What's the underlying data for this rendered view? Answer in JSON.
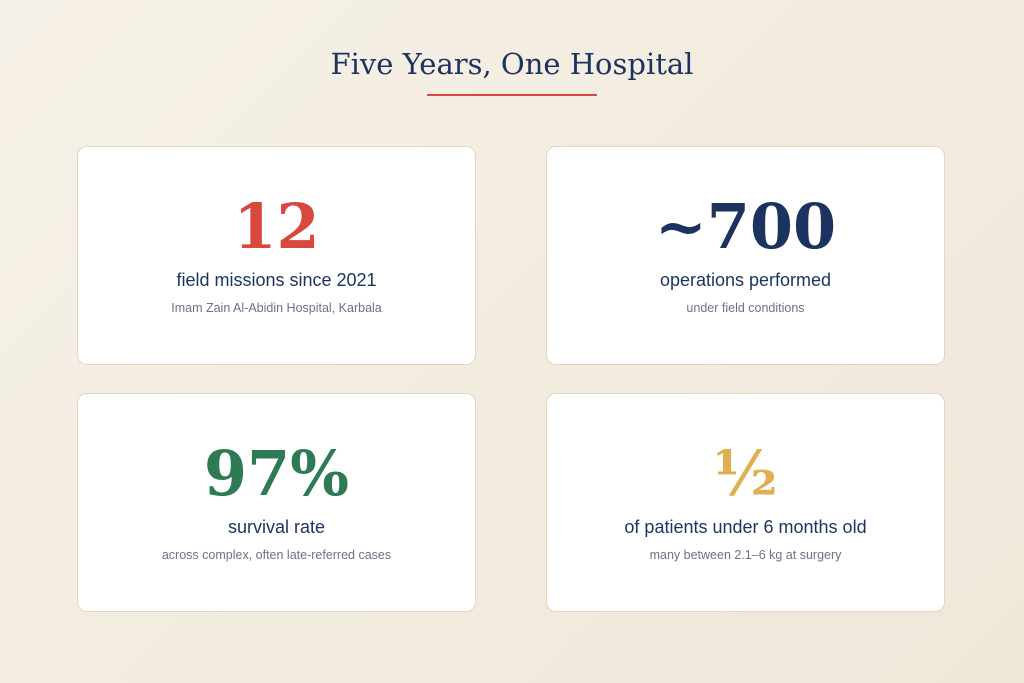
{
  "header": {
    "title": "Five Years, One Hospital"
  },
  "cards": [
    {
      "stat": "12",
      "label": "field missions since 2021",
      "note": "Imam Zain Al-Abidin Hospital, Karbala",
      "color": "#d8483f"
    },
    {
      "stat": "~700",
      "label": "operations performed",
      "note": "under field conditions",
      "color": "#1c335f"
    },
    {
      "stat": "97%",
      "label": "survival rate",
      "note": "across complex, often late-referred cases",
      "color": "#2d7a55"
    },
    {
      "stat": "½",
      "label": "of patients under 6 months old",
      "note": "many between 2.1–6 kg at surgery",
      "color": "#e2ae52"
    }
  ]
}
